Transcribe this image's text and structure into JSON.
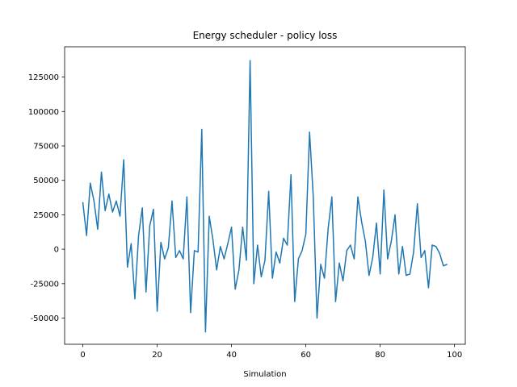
{
  "chart_data": {
    "type": "line",
    "title": "Energy scheduler - policy loss",
    "xlabel": "Simulation",
    "ylabel": "",
    "xlim": [
      -4.9,
      102.9
    ],
    "ylim": [
      -69000,
      147000
    ],
    "x_ticks": [
      0,
      20,
      40,
      60,
      80,
      100
    ],
    "y_ticks": [
      -50000,
      -25000,
      0,
      25000,
      50000,
      75000,
      100000,
      125000
    ],
    "grid": false,
    "legend": "none",
    "series": [
      {
        "color": "#1f77b4",
        "x": [
          0,
          1,
          2,
          3,
          4,
          5,
          6,
          7,
          8,
          9,
          10,
          11,
          12,
          13,
          14,
          15,
          16,
          17,
          18,
          19,
          20,
          21,
          22,
          23,
          24,
          25,
          26,
          27,
          28,
          29,
          30,
          31,
          32,
          33,
          34,
          35,
          36,
          37,
          38,
          39,
          40,
          41,
          42,
          43,
          44,
          45,
          46,
          47,
          48,
          49,
          50,
          51,
          52,
          53,
          54,
          55,
          56,
          57,
          58,
          59,
          60,
          61,
          62,
          63,
          64,
          65,
          66,
          67,
          68,
          69,
          70,
          71,
          72,
          73,
          74,
          75,
          76,
          77,
          78,
          79,
          80,
          81,
          82,
          83,
          84,
          85,
          86,
          87,
          88,
          89,
          90,
          91,
          92,
          93,
          94,
          95,
          96,
          97,
          98
        ],
        "y": [
          34000,
          10000,
          48000,
          35000,
          14500,
          56000,
          28000,
          40000,
          27000,
          35000,
          24000,
          65000,
          -13000,
          4000,
          -36000,
          10000,
          30000,
          -31000,
          17000,
          29000,
          -45000,
          5000,
          -7000,
          1000,
          35000,
          -6000,
          -1000,
          -7000,
          38000,
          -46000,
          -1000,
          -2000,
          87000,
          -60000,
          24000,
          7000,
          -15000,
          2000,
          -7000,
          4000,
          16000,
          -29000,
          -15000,
          16000,
          -8000,
          137000,
          -25000,
          3000,
          -20000,
          -8000,
          42000,
          -21000,
          -2000,
          -10000,
          8000,
          3000,
          54000,
          -38000,
          -7000,
          -1000,
          11000,
          85000,
          38000,
          -50000,
          -11000,
          -21000,
          15000,
          38000,
          -38000,
          -10000,
          -23000,
          -1000,
          3000,
          -7000,
          38000,
          20000,
          6000,
          -19000,
          -6000,
          19000,
          -18000,
          43000,
          -7000,
          6000,
          25000,
          -18000,
          2000,
          -19000,
          -18000,
          -2000,
          33000,
          -6000,
          -1000,
          -28000,
          3000,
          2000,
          -3000,
          -12000,
          -11000
        ]
      }
    ]
  }
}
